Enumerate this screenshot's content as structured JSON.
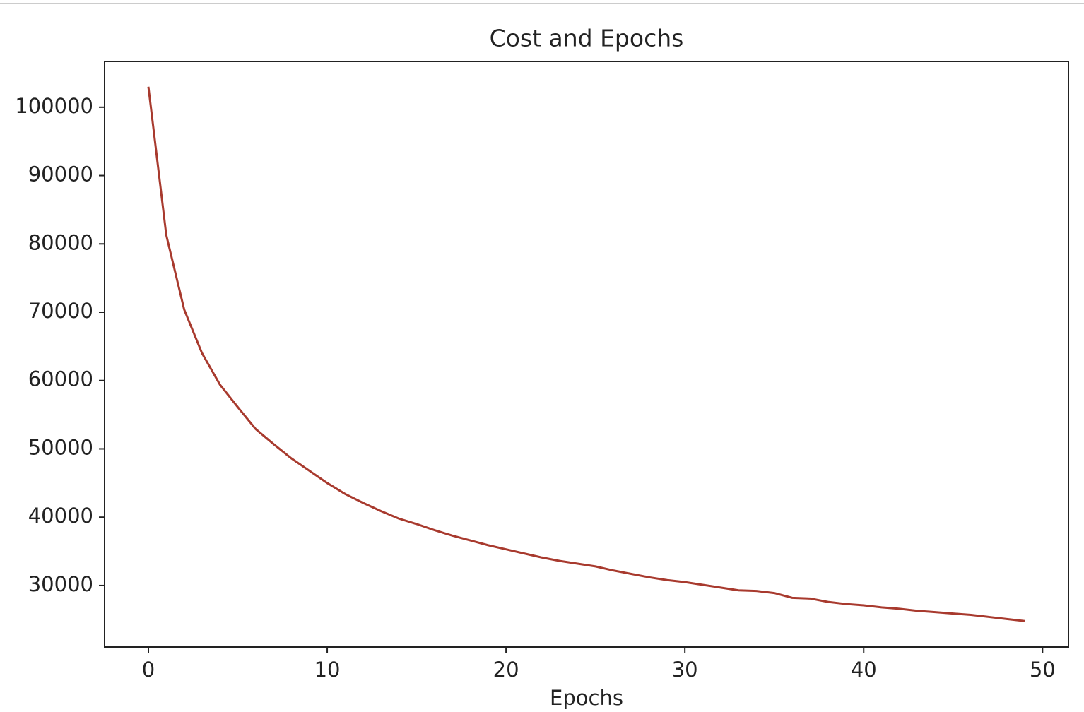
{
  "chart_data": {
    "type": "line",
    "title": "Cost and Epochs",
    "x_label": "Epochs",
    "x": [
      0,
      1,
      2,
      3,
      4,
      5,
      6,
      7,
      8,
      9,
      10,
      11,
      12,
      13,
      14,
      15,
      16,
      17,
      18,
      19,
      20,
      21,
      22,
      23,
      24,
      25,
      26,
      27,
      28,
      29,
      30,
      31,
      32,
      33,
      34,
      35,
      36,
      37,
      38,
      39,
      40,
      41,
      42,
      43,
      44,
      45,
      46,
      47,
      48,
      49
    ],
    "series": [
      {
        "name": "Cost",
        "color": "#a83a2e",
        "values": [
          103000,
          81300,
          70400,
          64000,
          59400,
          56100,
          52900,
          50700,
          48600,
          46800,
          45000,
          43400,
          42100,
          40900,
          39800,
          39000,
          38100,
          37300,
          36600,
          35900,
          35300,
          34700,
          34100,
          33600,
          33200,
          32800,
          32200,
          31700,
          31200,
          30800,
          30500,
          30100,
          29700,
          29300,
          29200,
          28900,
          28200,
          28100,
          27600,
          27300,
          27100,
          26800,
          26600,
          26300,
          26100,
          25900,
          25700,
          25400,
          25100,
          24800
        ]
      }
    ],
    "xlim": [
      -2.45,
      51.45
    ],
    "xticks": [
      0,
      10,
      20,
      30,
      40,
      50
    ],
    "ylim": [
      21000,
      106700
    ],
    "yticks": [
      30000,
      40000,
      50000,
      60000,
      70000,
      80000,
      90000,
      100000
    ]
  }
}
